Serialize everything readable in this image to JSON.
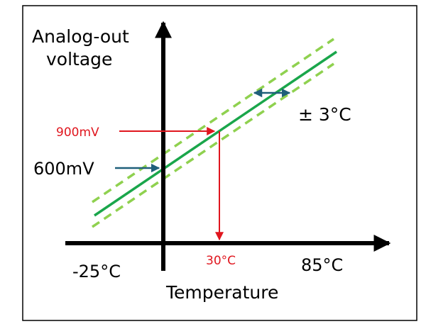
{
  "labels": {
    "y_axis_line1": "Analog-out",
    "y_axis_line2": "voltage",
    "x_axis": "Temperature",
    "x_min": "-25°C",
    "x_max": "85°C",
    "x_marker": "30°C",
    "y_marker": "900mV",
    "y_intercept": "600mV",
    "tolerance": "± 3°C"
  },
  "colors": {
    "axis": "#000000",
    "line": "#1aa64b",
    "tolerance_band": "#8fd14f",
    "marker": "#e0161e",
    "pointer": "#1f5f7a",
    "border": "#000000"
  }
}
